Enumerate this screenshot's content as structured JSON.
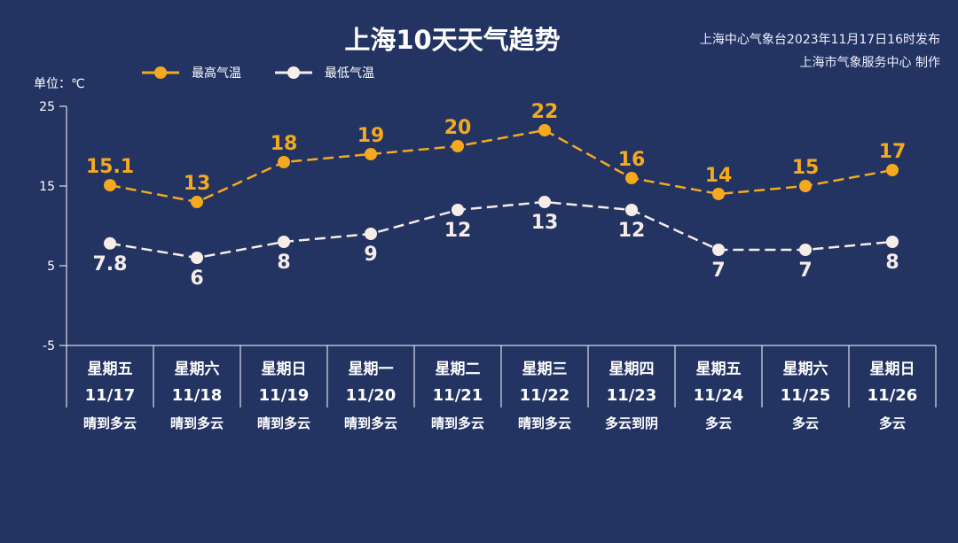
{
  "chart_data": {
    "type": "line",
    "title": "上海10天天气趋势",
    "source_lines": [
      "上海中心气象台2023年11月17日16时发布",
      "上海市气象服务中心 制作"
    ],
    "ylabel": "单位：℃",
    "ylim": [
      -5,
      25
    ],
    "yticks": [
      25,
      15,
      5,
      -5
    ],
    "grid": false,
    "legend": "top-left",
    "categories": [
      {
        "weekday": "星期五",
        "date": "11/17",
        "weather": "晴到多云"
      },
      {
        "weekday": "星期六",
        "date": "11/18",
        "weather": "晴到多云"
      },
      {
        "weekday": "星期日",
        "date": "11/19",
        "weather": "晴到多云"
      },
      {
        "weekday": "星期一",
        "date": "11/20",
        "weather": "晴到多云"
      },
      {
        "weekday": "星期二",
        "date": "11/21",
        "weather": "晴到多云"
      },
      {
        "weekday": "星期三",
        "date": "11/22",
        "weather": "晴到多云"
      },
      {
        "weekday": "星期四",
        "date": "11/23",
        "weather": "多云到阴"
      },
      {
        "weekday": "星期五",
        "date": "11/24",
        "weather": "多云"
      },
      {
        "weekday": "星期六",
        "date": "11/25",
        "weather": "多云"
      },
      {
        "weekday": "星期日",
        "date": "11/26",
        "weather": "多云"
      }
    ],
    "series": [
      {
        "name": "最高气温",
        "color": "#f5a91e",
        "values": [
          15.1,
          13,
          18,
          19,
          20,
          22,
          16,
          14,
          15,
          17
        ]
      },
      {
        "name": "最低气温",
        "color": "#f6ece8",
        "values": [
          7.8,
          6,
          8,
          9,
          12,
          13,
          12,
          7,
          7,
          8
        ]
      }
    ]
  },
  "colors": {
    "background": "#233463",
    "axis": "#ffffff"
  }
}
